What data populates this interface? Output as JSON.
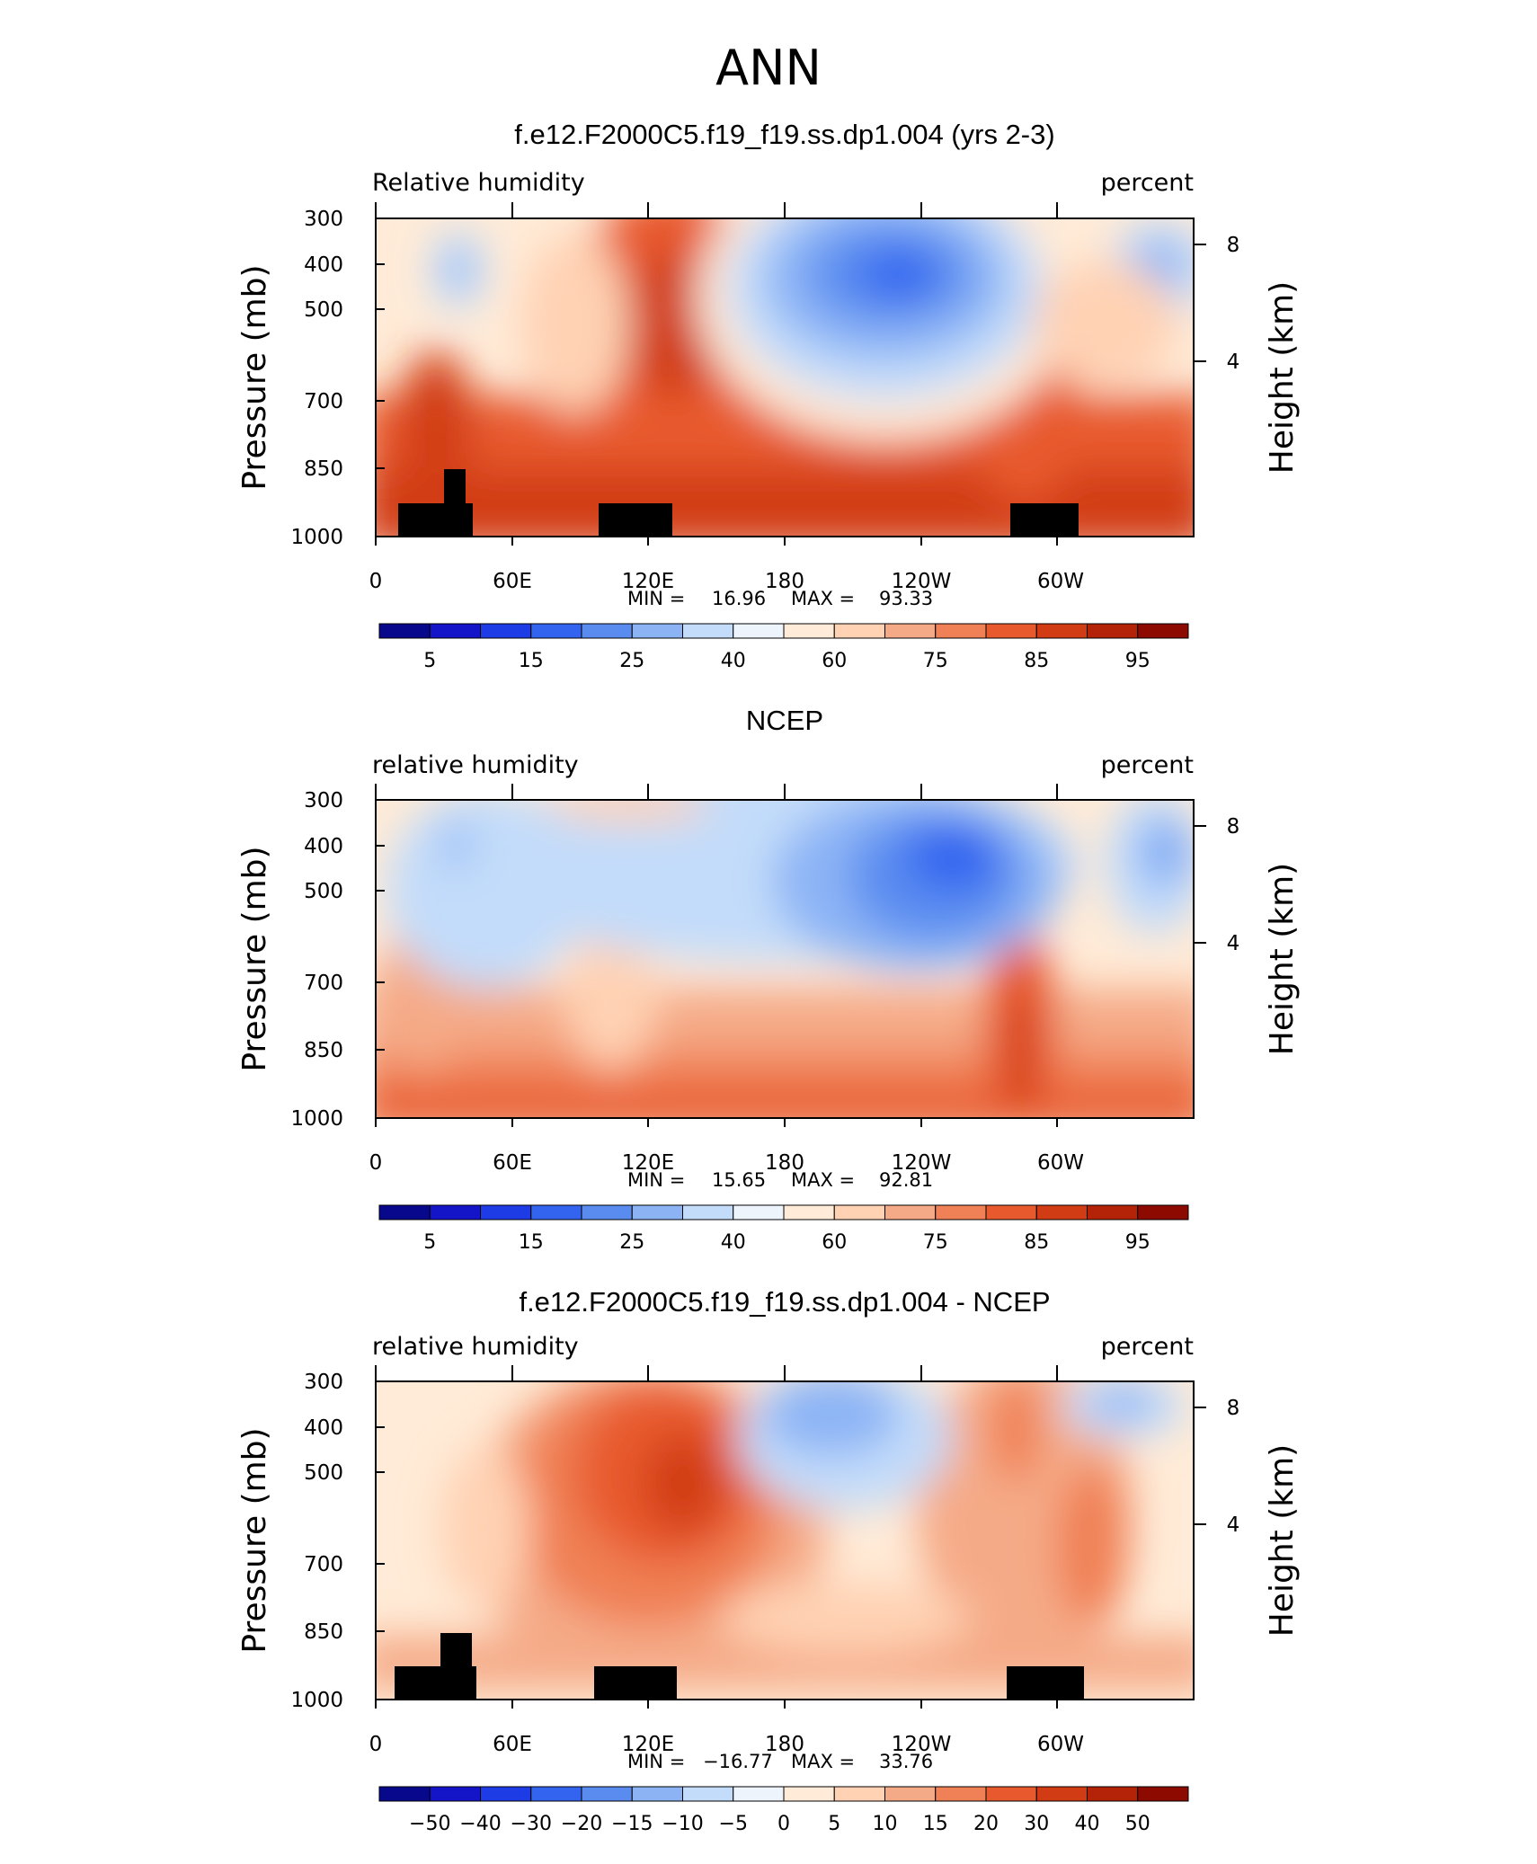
{
  "figure_title": "ANN",
  "colors": {
    "cmap": [
      "#08088c",
      "#1414c8",
      "#1e3ce6",
      "#3264f0",
      "#5a8cf0",
      "#8cb4f5",
      "#c3dcfa",
      "#eef4fb",
      "#ffebd7",
      "#ffd2b4",
      "#f5aa87",
      "#f08055",
      "#e85a2d",
      "#d23c14",
      "#b42308",
      "#8c0a00"
    ],
    "land": "#000000",
    "frame": "#000000"
  },
  "panels": [
    {
      "title": "f.e12.F2000C5.f19_f19.ss.dp1.004 (yrs 2-3)",
      "left_label": "Relative humidity",
      "right_label": "percent",
      "stats": {
        "min_label": "MIN =",
        "min_value": "16.96",
        "max_label": "MAX =",
        "max_value": "93.33"
      },
      "colorbar": {
        "labels": [
          "5",
          "15",
          "25",
          "40",
          "60",
          "75",
          "85",
          "95"
        ]
      }
    },
    {
      "title": "NCEP",
      "left_label": "relative humidity",
      "right_label": "percent",
      "stats": {
        "min_label": "MIN =",
        "min_value": "15.65",
        "max_label": "MAX =",
        "max_value": "92.81"
      },
      "colorbar": {
        "labels": [
          "5",
          "15",
          "25",
          "40",
          "60",
          "75",
          "85",
          "95"
        ]
      }
    },
    {
      "title": "f.e12.F2000C5.f19_f19.ss.dp1.004 - NCEP",
      "left_label": "relative humidity",
      "right_label": "percent",
      "stats": {
        "min_label": "MIN =",
        "min_value": "−16.77",
        "max_label": "MAX =",
        "max_value": "33.76"
      },
      "colorbar": {
        "labels": [
          "−50",
          "−40",
          "−30",
          "−20",
          "−15",
          "−10",
          "−5",
          "0",
          "5",
          "10",
          "15",
          "20",
          "30",
          "40",
          "50"
        ]
      }
    }
  ],
  "chart_data": [
    {
      "type": "heatmap",
      "title": "f.e12.F2000C5.f19_f19.ss.dp1.004 (yrs 2-3)",
      "variable": "Relative humidity",
      "units": "percent",
      "xlabel": "",
      "ylabel": "Pressure (mb)",
      "y2label": "Height (km)",
      "x_ticks": [
        "0",
        "60E",
        "120E",
        "180",
        "120W",
        "60W"
      ],
      "x_tick_values": [
        0,
        60,
        120,
        180,
        240,
        300
      ],
      "xlim": [
        0,
        360
      ],
      "y_ticks": [
        "300",
        "400",
        "500",
        "700",
        "850",
        "1000"
      ],
      "y_tick_values": [
        300,
        400,
        500,
        700,
        850,
        1000
      ],
      "ylim": [
        1000,
        300
      ],
      "y2_ticks": [
        "4",
        "8"
      ],
      "y2_tick_values": [
        4,
        8
      ],
      "contour_levels": [
        5,
        10,
        15,
        20,
        25,
        30,
        40,
        50,
        60,
        65,
        75,
        80,
        85,
        90,
        95
      ],
      "colorbar_labels": [
        "5",
        "15",
        "25",
        "40",
        "60",
        "75",
        "85",
        "95"
      ],
      "min": 16.96,
      "max": 93.33,
      "features": [
        {
          "lon": 40,
          "p": 400,
          "value": 40
        },
        {
          "lon": 110,
          "p": 500,
          "value": 82
        },
        {
          "lon": 225,
          "p": 400,
          "value": 22
        },
        {
          "lon": 340,
          "p": 400,
          "value": 30
        },
        {
          "lon": 160,
          "p": 940,
          "value": 88
        },
        {
          "lon": 300,
          "p": 925,
          "value": 90
        }
      ],
      "topography": [
        {
          "lon_start": 10,
          "lon_end": 42,
          "p_top": 925
        },
        {
          "lon_start": 30,
          "lon_end": 39,
          "p_top": 850
        },
        {
          "lon_start": 98,
          "lon_end": 131,
          "p_top": 925
        },
        {
          "lon_start": 279,
          "lon_end": 309,
          "p_top": 925
        }
      ]
    },
    {
      "type": "heatmap",
      "title": "NCEP",
      "variable": "relative humidity",
      "units": "percent",
      "xlabel": "",
      "ylabel": "Pressure (mb)",
      "y2label": "Height (km)",
      "x_ticks": [
        "0",
        "60E",
        "120E",
        "180",
        "120W",
        "60W"
      ],
      "x_tick_values": [
        0,
        60,
        120,
        180,
        240,
        300
      ],
      "xlim": [
        0,
        360
      ],
      "y_ticks": [
        "300",
        "400",
        "500",
        "700",
        "850",
        "1000"
      ],
      "y_tick_values": [
        300,
        400,
        500,
        700,
        850,
        1000
      ],
      "ylim": [
        1000,
        300
      ],
      "y2_ticks": [
        "4",
        "8"
      ],
      "y2_tick_values": [
        4,
        8
      ],
      "contour_levels": [
        5,
        10,
        15,
        20,
        25,
        30,
        40,
        50,
        60,
        65,
        75,
        80,
        85,
        90,
        95
      ],
      "colorbar_labels": [
        "5",
        "15",
        "25",
        "40",
        "60",
        "75",
        "85",
        "95"
      ],
      "min": 15.65,
      "max": 92.81,
      "features": [
        {
          "lon": 35,
          "p": 420,
          "value": 30
        },
        {
          "lon": 250,
          "p": 420,
          "value": 20
        },
        {
          "lon": 350,
          "p": 420,
          "value": 25
        },
        {
          "lon": 280,
          "p": 880,
          "value": 85
        },
        {
          "lon": 180,
          "p": 980,
          "value": 80
        }
      ]
    },
    {
      "type": "heatmap",
      "title": "f.e12.F2000C5.f19_f19.ss.dp1.004 - NCEP",
      "variable": "relative humidity",
      "units": "percent",
      "xlabel": "",
      "ylabel": "Pressure (mb)",
      "y2label": "Height (km)",
      "x_ticks": [
        "0",
        "60E",
        "120E",
        "180",
        "120W",
        "60W"
      ],
      "x_tick_values": [
        0,
        60,
        120,
        180,
        240,
        300
      ],
      "xlim": [
        0,
        360
      ],
      "y_ticks": [
        "300",
        "400",
        "500",
        "700",
        "850",
        "1000"
      ],
      "y_tick_values": [
        300,
        400,
        500,
        700,
        850,
        1000
      ],
      "ylim": [
        1000,
        300
      ],
      "y2_ticks": [
        "4",
        "8"
      ],
      "y2_tick_values": [
        4,
        8
      ],
      "contour_levels": [
        -50,
        -40,
        -30,
        -20,
        -15,
        -10,
        -5,
        0,
        5,
        10,
        15,
        20,
        30,
        40,
        50
      ],
      "colorbar_labels": [
        "−50",
        "−40",
        "−30",
        "−20",
        "−15",
        "−10",
        "−5",
        "0",
        "5",
        "10",
        "15",
        "20",
        "30",
        "40",
        "50"
      ],
      "min": -16.77,
      "max": 33.76,
      "features": [
        {
          "lon": 125,
          "p": 500,
          "value": 30
        },
        {
          "lon": 200,
          "p": 400,
          "value": -15
        },
        {
          "lon": 290,
          "p": 600,
          "value": 18
        },
        {
          "lon": 340,
          "p": 350,
          "value": -8
        }
      ],
      "topography": [
        {
          "lon_start": 8,
          "lon_end": 44,
          "p_top": 925
        },
        {
          "lon_start": 28,
          "lon_end": 42,
          "p_top": 850
        },
        {
          "lon_start": 96,
          "lon_end": 132,
          "p_top": 925
        },
        {
          "lon_start": 277,
          "lon_end": 311,
          "p_top": 925
        }
      ]
    }
  ]
}
